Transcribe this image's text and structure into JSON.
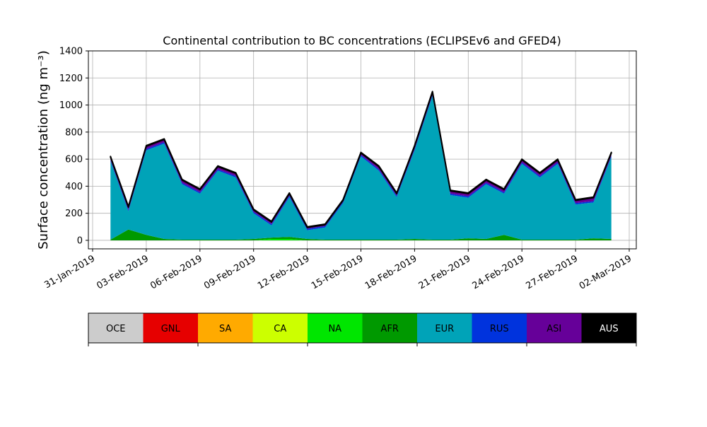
{
  "chart_data": {
    "type": "stacked_area",
    "title": "Continental contribution to BC concentrations (ECLIPSEv6 and GFED4)",
    "y_label": "Surface concentration (ng m⁻³)",
    "x": [
      "01-Feb-2019",
      "02-Feb-2019",
      "03-Feb-2019",
      "04-Feb-2019",
      "05-Feb-2019",
      "06-Feb-2019",
      "07-Feb-2019",
      "08-Feb-2019",
      "09-Feb-2019",
      "10-Feb-2019",
      "11-Feb-2019",
      "12-Feb-2019",
      "13-Feb-2019",
      "14-Feb-2019",
      "15-Feb-2019",
      "16-Feb-2019",
      "17-Feb-2019",
      "18-Feb-2019",
      "19-Feb-2019",
      "20-Feb-2019",
      "21-Feb-2019",
      "22-Feb-2019",
      "23-Feb-2019",
      "24-Feb-2019",
      "25-Feb-2019",
      "26-Feb-2019",
      "27-Feb-2019",
      "28-Feb-2019",
      "01-Mar-2019"
    ],
    "xlim": [
      "31-Jan-2019",
      "02-Mar-2019"
    ],
    "xticks": [
      "31-Jan-2019",
      "03-Feb-2019",
      "06-Feb-2019",
      "09-Feb-2019",
      "12-Feb-2019",
      "15-Feb-2019",
      "18-Feb-2019",
      "21-Feb-2019",
      "24-Feb-2019",
      "27-Feb-2019",
      "02-Mar-2019"
    ],
    "ylim": [
      -63,
      1400
    ],
    "yticks": [
      0,
      200,
      400,
      600,
      800,
      1000,
      1200,
      1400
    ],
    "grid": true,
    "series": [
      {
        "name": "OCE",
        "color": "#cccccc",
        "values": [
          0,
          0,
          0,
          0,
          0,
          0,
          0,
          0,
          0,
          0,
          0,
          0,
          0,
          0,
          0,
          0,
          0,
          0,
          0,
          0,
          0,
          0,
          0,
          0,
          0,
          0,
          0,
          0,
          0
        ]
      },
      {
        "name": "GNL",
        "color": "#e60000",
        "values": [
          0,
          0,
          0,
          0,
          0,
          0,
          0,
          0,
          0,
          0,
          0,
          0,
          0,
          0,
          0,
          0,
          0,
          0,
          0,
          0,
          0,
          0,
          0,
          0,
          0,
          0,
          0,
          0,
          0
        ]
      },
      {
        "name": "SA",
        "color": "#ffaa00",
        "values": [
          0,
          0,
          0,
          0,
          0,
          0,
          0,
          0,
          0,
          0,
          0,
          0,
          0,
          0,
          0,
          0,
          0,
          0,
          0,
          0,
          0,
          0,
          0,
          0,
          0,
          0,
          0,
          0,
          0
        ]
      },
      {
        "name": "CA",
        "color": "#ccff00",
        "values": [
          0,
          0,
          0,
          0,
          0,
          0,
          0,
          0,
          0,
          0,
          0,
          0,
          0,
          0,
          0,
          0,
          0,
          0,
          0,
          0,
          0,
          0,
          0,
          0,
          0,
          0,
          0,
          0,
          0
        ]
      },
      {
        "name": "NA",
        "color": "#00e600",
        "values": [
          0,
          0,
          0,
          0,
          0,
          0,
          0,
          0,
          0,
          10,
          10,
          0,
          0,
          0,
          0,
          0,
          0,
          0,
          0,
          0,
          0,
          0,
          0,
          0,
          0,
          0,
          0,
          0,
          0
        ]
      },
      {
        "name": "AFR",
        "color": "#009900",
        "values": [
          5,
          80,
          40,
          10,
          5,
          5,
          5,
          5,
          10,
          10,
          15,
          10,
          5,
          5,
          5,
          5,
          5,
          10,
          5,
          5,
          15,
          10,
          40,
          5,
          5,
          5,
          5,
          15,
          10
        ]
      },
      {
        "name": "EUR",
        "color": "#00a3b8",
        "values": [
          580,
          135,
          625,
          705,
          410,
          340,
          510,
          460,
          190,
          90,
          295,
          65,
          90,
          270,
          615,
          510,
          315,
          655,
          1060,
          330,
          300,
          405,
          305,
          560,
          460,
          560,
          260,
          265,
          605
        ]
      },
      {
        "name": "RUS",
        "color": "#0033dd",
        "values": [
          10,
          10,
          10,
          10,
          10,
          10,
          10,
          10,
          10,
          10,
          10,
          10,
          10,
          10,
          10,
          10,
          10,
          10,
          10,
          10,
          10,
          10,
          10,
          10,
          10,
          10,
          10,
          10,
          10
        ]
      },
      {
        "name": "ASI",
        "color": "#660099",
        "values": [
          20,
          20,
          20,
          20,
          20,
          20,
          20,
          20,
          15,
          15,
          15,
          10,
          10,
          10,
          15,
          20,
          15,
          20,
          20,
          20,
          20,
          20,
          20,
          20,
          20,
          20,
          20,
          25,
          20
        ]
      },
      {
        "name": "AUS",
        "color": "#000000",
        "values": [
          5,
          5,
          5,
          5,
          5,
          5,
          5,
          5,
          5,
          5,
          5,
          5,
          5,
          5,
          5,
          5,
          5,
          5,
          5,
          5,
          5,
          5,
          5,
          5,
          5,
          5,
          5,
          5,
          5
        ]
      }
    ]
  }
}
